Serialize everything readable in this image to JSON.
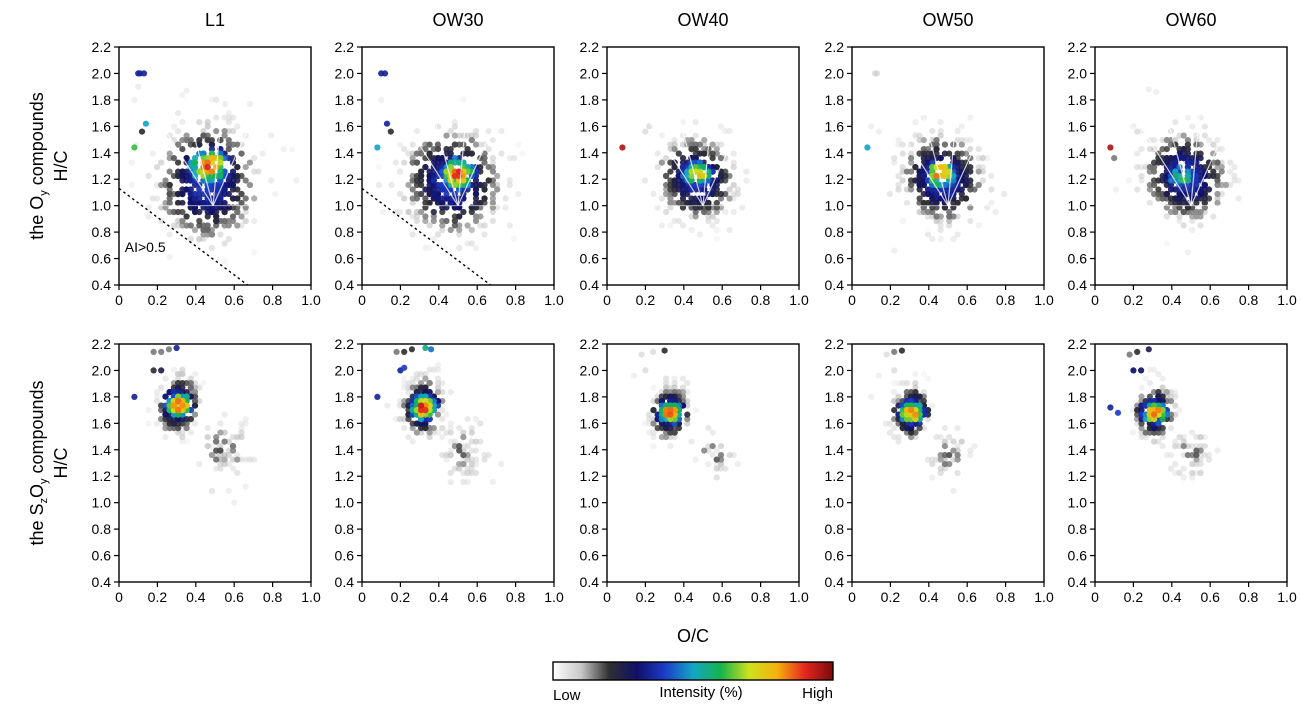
{
  "chart_data": {
    "type": "scatter",
    "title": "",
    "columns": [
      "L1",
      "OW30",
      "OW40",
      "OW50",
      "OW60"
    ],
    "rows": [
      {
        "id": "oy",
        "label_parts": [
          "the O",
          "y",
          " compounds"
        ],
        "ylabel": "H/C"
      },
      {
        "id": "szoy",
        "label_parts": [
          "the S",
          "z",
          "O",
          "y",
          " compounds"
        ],
        "ylabel": "H/C"
      }
    ],
    "xlabel": "O/C",
    "xlim": [
      0,
      1.0
    ],
    "ylim": [
      0.4,
      2.2
    ],
    "x_ticks": [
      "0",
      "0.2",
      "0.4",
      "0.6",
      "0.8",
      "1.0"
    ],
    "y_ticks": [
      "0.4",
      "0.6",
      "0.8",
      "1.0",
      "1.2",
      "1.4",
      "1.6",
      "1.8",
      "2.0",
      "2.2"
    ],
    "x_tick_values": [
      0,
      0.2,
      0.4,
      0.6,
      0.8,
      1.0
    ],
    "y_tick_values": [
      0.4,
      0.6,
      0.8,
      1.0,
      1.2,
      1.4,
      1.6,
      1.8,
      2.0,
      2.2
    ],
    "grid": false,
    "annotation": {
      "text": "AI>0.5",
      "panel": "L1-oy"
    },
    "ai_threshold_line": {
      "panels": [
        "L1-oy",
        "OW30-oy"
      ],
      "x": [
        0,
        0.67
      ],
      "y": [
        1.13,
        0.4
      ],
      "style": "dotted"
    },
    "colorbar": {
      "title": "Intensity (%)",
      "low_label": "Low",
      "high_label": "High",
      "colors": [
        "#ffffff",
        "#c8c8c8",
        "#303030",
        "#10106a",
        "#1c3cc8",
        "#13a6c6",
        "#17b34a",
        "#cde21e",
        "#f6b10c",
        "#e42620",
        "#7a0a0a"
      ]
    },
    "panels": [
      {
        "id": "L1-oy",
        "row": "oy",
        "column": "L1",
        "clusters": [
          {
            "cx": 0.46,
            "cy": 1.18,
            "sx": 0.14,
            "sy": 0.22,
            "rot": -0.45,
            "n": 430
          }
        ],
        "hotspots": [
          {
            "cx": 0.47,
            "cy": 1.3,
            "sx": 0.08,
            "sy": 0.1,
            "peak": 0.95
          }
        ],
        "outliers": [
          {
            "x": 0.1,
            "y": 2.0,
            "level": 0.35
          },
          {
            "x": 0.11,
            "y": 2.0,
            "level": 0.35
          },
          {
            "x": 0.13,
            "y": 2.0,
            "level": 0.35
          },
          {
            "x": 0.14,
            "y": 1.62,
            "level": 0.5
          },
          {
            "x": 0.08,
            "y": 1.44,
            "level": 0.62
          },
          {
            "x": 0.12,
            "y": 1.56,
            "level": 0.2
          },
          {
            "x": 0.1,
            "y": 1.9,
            "level": 0.06
          },
          {
            "x": 0.08,
            "y": 1.8,
            "level": 0.05
          }
        ]
      },
      {
        "id": "OW30-oy",
        "row": "oy",
        "column": "OW30",
        "clusters": [
          {
            "cx": 0.47,
            "cy": 1.18,
            "sx": 0.14,
            "sy": 0.19,
            "rot": -0.45,
            "n": 400
          }
        ],
        "hotspots": [
          {
            "cx": 0.5,
            "cy": 1.24,
            "sx": 0.07,
            "sy": 0.09,
            "peak": 0.95
          }
        ],
        "outliers": [
          {
            "x": 0.1,
            "y": 2.0,
            "level": 0.35
          },
          {
            "x": 0.12,
            "y": 2.0,
            "level": 0.35
          },
          {
            "x": 0.13,
            "y": 1.62,
            "level": 0.35
          },
          {
            "x": 0.15,
            "y": 1.56,
            "level": 0.2
          },
          {
            "x": 0.08,
            "y": 1.44,
            "level": 0.5
          },
          {
            "x": 0.1,
            "y": 1.8,
            "level": 0.05
          }
        ]
      },
      {
        "id": "OW40-oy",
        "row": "oy",
        "column": "OW40",
        "clusters": [
          {
            "cx": 0.47,
            "cy": 1.2,
            "sx": 0.11,
            "sy": 0.15,
            "rot": -0.45,
            "n": 320
          }
        ],
        "hotspots": [
          {
            "cx": 0.47,
            "cy": 1.24,
            "sx": 0.06,
            "sy": 0.07,
            "peak": 0.85
          }
        ],
        "outliers": [
          {
            "x": 0.08,
            "y": 1.44,
            "level": 0.95
          },
          {
            "x": 0.2,
            "y": 1.56,
            "level": 0.1
          },
          {
            "x": 0.22,
            "y": 1.6,
            "level": 0.1
          }
        ]
      },
      {
        "id": "OW50-oy",
        "row": "oy",
        "column": "OW50",
        "clusters": [
          {
            "cx": 0.47,
            "cy": 1.2,
            "sx": 0.12,
            "sy": 0.16,
            "rot": -0.45,
            "n": 360
          }
        ],
        "hotspots": [
          {
            "cx": 0.46,
            "cy": 1.24,
            "sx": 0.06,
            "sy": 0.08,
            "peak": 0.9
          }
        ],
        "outliers": [
          {
            "x": 0.12,
            "y": 2.0,
            "level": 0.1
          },
          {
            "x": 0.13,
            "y": 2.0,
            "level": 0.1
          },
          {
            "x": 0.08,
            "y": 1.44,
            "level": 0.5
          },
          {
            "x": 0.1,
            "y": 1.6,
            "level": 0.05
          },
          {
            "x": 0.14,
            "y": 1.56,
            "level": 0.05
          },
          {
            "x": 0.22,
            "y": 0.66,
            "level": 0.05
          }
        ]
      },
      {
        "id": "OW60-oy",
        "row": "oy",
        "column": "OW60",
        "clusters": [
          {
            "cx": 0.47,
            "cy": 1.22,
            "sx": 0.12,
            "sy": 0.16,
            "rot": -0.45,
            "n": 330
          }
        ],
        "hotspots": [
          {
            "cx": 0.45,
            "cy": 1.22,
            "sx": 0.05,
            "sy": 0.06,
            "peak": 0.7
          }
        ],
        "outliers": [
          {
            "x": 0.08,
            "y": 1.44,
            "level": 0.95
          },
          {
            "x": 0.1,
            "y": 1.36,
            "level": 0.15
          },
          {
            "x": 0.22,
            "y": 1.56,
            "level": 0.1
          },
          {
            "x": 0.28,
            "y": 1.88,
            "level": 0.05
          },
          {
            "x": 0.32,
            "y": 1.86,
            "level": 0.05
          },
          {
            "x": 0.2,
            "y": 1.6,
            "level": 0.05
          }
        ]
      },
      {
        "id": "L1-szoy",
        "row": "szoy",
        "column": "L1",
        "clusters": [
          {
            "cx": 0.31,
            "cy": 1.74,
            "sx": 0.055,
            "sy": 0.11,
            "rot": -0.5,
            "n": 220
          },
          {
            "cx": 0.55,
            "cy": 1.4,
            "sx": 0.07,
            "sy": 0.11,
            "rot": -0.45,
            "n": 70,
            "dim": true
          }
        ],
        "hotspots": [
          {
            "cx": 0.31,
            "cy": 1.74,
            "sx": 0.05,
            "sy": 0.07,
            "peak": 0.95
          }
        ],
        "outliers": [
          {
            "x": 0.18,
            "y": 2.14,
            "level": 0.15
          },
          {
            "x": 0.22,
            "y": 2.14,
            "level": 0.15
          },
          {
            "x": 0.26,
            "y": 2.16,
            "level": 0.15
          },
          {
            "x": 0.3,
            "y": 2.17,
            "level": 0.35
          },
          {
            "x": 0.18,
            "y": 2.0,
            "level": 0.2
          },
          {
            "x": 0.22,
            "y": 2.0,
            "level": 0.25
          },
          {
            "x": 0.08,
            "y": 1.8,
            "level": 0.35
          },
          {
            "x": 0.6,
            "y": 1.0,
            "level": 0.05
          }
        ]
      },
      {
        "id": "OW30-szoy",
        "row": "szoy",
        "column": "OW30",
        "clusters": [
          {
            "cx": 0.32,
            "cy": 1.72,
            "sx": 0.055,
            "sy": 0.11,
            "rot": -0.5,
            "n": 220
          },
          {
            "cx": 0.52,
            "cy": 1.38,
            "sx": 0.07,
            "sy": 0.11,
            "rot": -0.45,
            "n": 70,
            "dim": true
          }
        ],
        "hotspots": [
          {
            "cx": 0.32,
            "cy": 1.72,
            "sx": 0.05,
            "sy": 0.07,
            "peak": 0.95
          }
        ],
        "outliers": [
          {
            "x": 0.18,
            "y": 2.14,
            "level": 0.15
          },
          {
            "x": 0.22,
            "y": 2.14,
            "level": 0.2
          },
          {
            "x": 0.26,
            "y": 2.16,
            "level": 0.2
          },
          {
            "x": 0.33,
            "y": 2.17,
            "level": 0.55
          },
          {
            "x": 0.36,
            "y": 2.16,
            "level": 0.45
          },
          {
            "x": 0.2,
            "y": 2.0,
            "level": 0.35
          },
          {
            "x": 0.22,
            "y": 2.02,
            "level": 0.4
          },
          {
            "x": 0.08,
            "y": 1.8,
            "level": 0.35
          }
        ]
      },
      {
        "id": "OW40-szoy",
        "row": "szoy",
        "column": "OW40",
        "clusters": [
          {
            "cx": 0.33,
            "cy": 1.68,
            "sx": 0.05,
            "sy": 0.1,
            "rot": -0.5,
            "n": 200
          },
          {
            "cx": 0.55,
            "cy": 1.36,
            "sx": 0.06,
            "sy": 0.09,
            "rot": -0.45,
            "n": 30,
            "dim": true
          }
        ],
        "hotspots": [
          {
            "cx": 0.33,
            "cy": 1.68,
            "sx": 0.05,
            "sy": 0.06,
            "peak": 0.9
          }
        ],
        "outliers": [
          {
            "x": 0.18,
            "y": 2.12,
            "level": 0.1
          },
          {
            "x": 0.24,
            "y": 2.14,
            "level": 0.1
          },
          {
            "x": 0.3,
            "y": 2.15,
            "level": 0.2
          },
          {
            "x": 0.2,
            "y": 2.0,
            "level": 0.1
          },
          {
            "x": 0.14,
            "y": 1.96,
            "level": 0.05
          }
        ]
      },
      {
        "id": "OW50-szoy",
        "row": "szoy",
        "column": "OW50",
        "clusters": [
          {
            "cx": 0.31,
            "cy": 1.68,
            "sx": 0.05,
            "sy": 0.1,
            "rot": -0.5,
            "n": 200
          },
          {
            "cx": 0.5,
            "cy": 1.36,
            "sx": 0.06,
            "sy": 0.1,
            "rot": -0.45,
            "n": 45,
            "dim": true
          }
        ],
        "hotspots": [
          {
            "cx": 0.31,
            "cy": 1.68,
            "sx": 0.05,
            "sy": 0.06,
            "peak": 0.9
          }
        ],
        "outliers": [
          {
            "x": 0.18,
            "y": 2.12,
            "level": 0.1
          },
          {
            "x": 0.22,
            "y": 2.14,
            "level": 0.15
          },
          {
            "x": 0.26,
            "y": 2.15,
            "level": 0.2
          },
          {
            "x": 0.22,
            "y": 2.0,
            "level": 0.1
          },
          {
            "x": 0.14,
            "y": 1.96,
            "level": 0.05
          },
          {
            "x": 0.1,
            "y": 1.8,
            "level": 0.05
          }
        ]
      },
      {
        "id": "OW60-szoy",
        "row": "szoy",
        "column": "OW60",
        "clusters": [
          {
            "cx": 0.31,
            "cy": 1.68,
            "sx": 0.05,
            "sy": 0.1,
            "rot": -0.5,
            "n": 200
          },
          {
            "cx": 0.5,
            "cy": 1.36,
            "sx": 0.06,
            "sy": 0.1,
            "rot": -0.45,
            "n": 45,
            "dim": true
          }
        ],
        "hotspots": [
          {
            "cx": 0.31,
            "cy": 1.68,
            "sx": 0.05,
            "sy": 0.06,
            "peak": 0.9
          }
        ],
        "outliers": [
          {
            "x": 0.18,
            "y": 2.12,
            "level": 0.15
          },
          {
            "x": 0.22,
            "y": 2.14,
            "level": 0.2
          },
          {
            "x": 0.28,
            "y": 2.16,
            "level": 0.25
          },
          {
            "x": 0.2,
            "y": 2.0,
            "level": 0.3
          },
          {
            "x": 0.24,
            "y": 2.0,
            "level": 0.3
          },
          {
            "x": 0.08,
            "y": 1.72,
            "level": 0.35
          },
          {
            "x": 0.12,
            "y": 1.68,
            "level": 0.4
          }
        ]
      }
    ]
  }
}
